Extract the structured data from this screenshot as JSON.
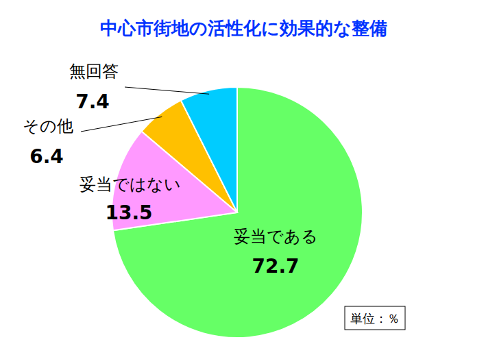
{
  "chart_data": {
    "type": "pie",
    "title": "中心市街地の活性化に効果的な整備",
    "categories": [
      "妥当である",
      "妥当ではない",
      "その他",
      "無回答"
    ],
    "values": [
      72.7,
      13.5,
      6.4,
      7.4
    ],
    "colors": [
      "#66ff66",
      "#ff99ff",
      "#ffc000",
      "#00ccff"
    ],
    "data_labels": true,
    "annotations": [
      "単位：％"
    ]
  }
}
